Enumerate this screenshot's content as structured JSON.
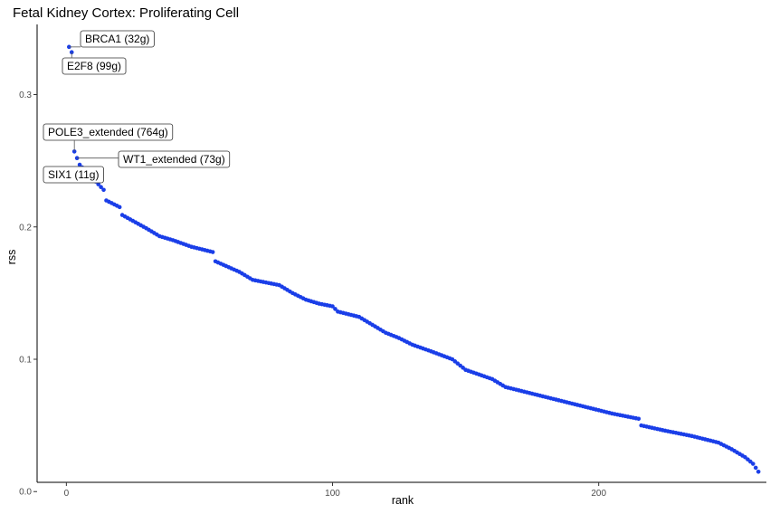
{
  "chart_data": {
    "type": "scatter",
    "title": "Fetal Kidney Cortex: Proliferating Cell",
    "xlabel": "rank",
    "ylabel": "rss",
    "xlim": [
      -11,
      263
    ],
    "ylim": [
      0.007,
      0.353
    ],
    "x_ticks": [
      0,
      100,
      200
    ],
    "x_tick_labels": [
      "0",
      "100",
      "200"
    ],
    "y_ticks": [
      0.0,
      0.1,
      0.2,
      0.3
    ],
    "y_tick_labels": [
      "0.0",
      "0.1",
      "0.2",
      "0.3"
    ],
    "grid": false,
    "legend": "none",
    "point_color": "#1a3ee8",
    "anchors": [
      [
        1,
        0.336
      ],
      [
        2,
        0.332
      ],
      [
        3,
        0.257
      ],
      [
        4,
        0.252
      ],
      [
        5,
        0.247
      ],
      [
        14,
        0.228
      ],
      [
        15,
        0.22
      ],
      [
        20,
        0.215
      ],
      [
        21,
        0.209
      ],
      [
        30,
        0.199
      ],
      [
        35,
        0.193
      ],
      [
        40,
        0.19
      ],
      [
        47,
        0.185
      ],
      [
        55,
        0.181
      ],
      [
        56,
        0.174
      ],
      [
        65,
        0.166
      ],
      [
        70,
        0.16
      ],
      [
        80,
        0.156
      ],
      [
        85,
        0.15
      ],
      [
        90,
        0.145
      ],
      [
        95,
        0.142
      ],
      [
        100,
        0.14
      ],
      [
        102,
        0.136
      ],
      [
        110,
        0.132
      ],
      [
        115,
        0.126
      ],
      [
        120,
        0.12
      ],
      [
        125,
        0.116
      ],
      [
        130,
        0.111
      ],
      [
        137,
        0.106
      ],
      [
        145,
        0.1
      ],
      [
        150,
        0.092
      ],
      [
        160,
        0.085
      ],
      [
        165,
        0.079
      ],
      [
        175,
        0.074
      ],
      [
        185,
        0.069
      ],
      [
        195,
        0.064
      ],
      [
        205,
        0.059
      ],
      [
        215,
        0.055
      ],
      [
        216,
        0.05
      ],
      [
        225,
        0.046
      ],
      [
        235,
        0.042
      ],
      [
        245,
        0.037
      ],
      [
        250,
        0.032
      ],
      [
        255,
        0.026
      ],
      [
        258,
        0.021
      ],
      [
        260,
        0.015
      ]
    ],
    "n_points": 260,
    "annotations": [
      {
        "text": "BRCA1 (32g)",
        "x": 1,
        "y": 0.336
      },
      {
        "text": "E2F8 (99g)",
        "x": 2,
        "y": 0.332
      },
      {
        "text": "POLE3_extended (764g)",
        "x": 3,
        "y": 0.257
      },
      {
        "text": "WT1_extended (73g)",
        "x": 4,
        "y": 0.252
      },
      {
        "text": "SIX1 (11g)",
        "x": 5,
        "y": 0.247
      }
    ]
  }
}
